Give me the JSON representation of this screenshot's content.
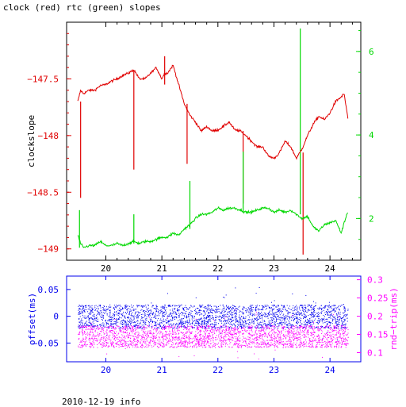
{
  "title": "clock (red) rtc (green) slopes",
  "footer": "2010-12-19 info",
  "colors": {
    "clock": "#e00000",
    "rtc": "#00d800",
    "offset": "#0000ee",
    "rtrip": "#ff00ff",
    "frame": "#000000"
  },
  "chart_data": [
    {
      "type": "line",
      "title": "clock (red) rtc (green) slopes",
      "ylabel": "clockslope",
      "xlim": [
        19.3,
        24.55
      ],
      "ylim": [
        -149.1,
        -147.0
      ],
      "y2lim": [
        1.0,
        6.7
      ],
      "x_ticks": [
        20,
        21,
        22,
        23,
        24
      ],
      "y_ticks": [
        -147.5,
        -148,
        -148.5,
        -149
      ],
      "y_tick_labels": [
        "−147.5",
        "−148",
        "−148.5",
        "−149"
      ],
      "y2_ticks": [
        2,
        4,
        6
      ],
      "y2_tick_labels": [
        "2",
        "4",
        "6"
      ],
      "series": [
        {
          "name": "clock",
          "axis": "left",
          "x": [
            19.5,
            19.55,
            19.6,
            19.7,
            19.8,
            19.9,
            20.0,
            20.1,
            20.2,
            20.3,
            20.4,
            20.5,
            20.6,
            20.7,
            20.8,
            20.9,
            21.0,
            21.05,
            21.1,
            21.2,
            21.3,
            21.4,
            21.5,
            21.6,
            21.7,
            21.8,
            21.9,
            22.0,
            22.1,
            22.2,
            22.3,
            22.4,
            22.5,
            22.6,
            22.7,
            22.8,
            22.9,
            23.0,
            23.05,
            23.1,
            23.2,
            23.3,
            23.4,
            23.5,
            23.6,
            23.7,
            23.8,
            23.9,
            24.0,
            24.1,
            24.2,
            24.25,
            24.3,
            24.32
          ],
          "y": [
            -147.7,
            -147.6,
            -147.63,
            -147.6,
            -147.6,
            -147.56,
            -147.55,
            -147.52,
            -147.5,
            -147.47,
            -147.45,
            -147.42,
            -147.5,
            -147.5,
            -147.45,
            -147.4,
            -147.5,
            -147.45,
            -147.45,
            -147.38,
            -147.55,
            -147.72,
            -147.82,
            -147.88,
            -147.96,
            -147.92,
            -147.96,
            -147.95,
            -147.92,
            -147.88,
            -147.95,
            -147.96,
            -148.0,
            -148.05,
            -148.1,
            -148.1,
            -148.18,
            -148.2,
            -148.18,
            -148.15,
            -148.05,
            -148.1,
            -148.2,
            -148.12,
            -148.0,
            -147.9,
            -147.83,
            -147.86,
            -147.8,
            -147.7,
            -147.66,
            -147.63,
            -147.78,
            -147.85
          ]
        },
        {
          "name": "rtc",
          "axis": "right",
          "x": [
            19.5,
            19.55,
            19.6,
            19.7,
            19.8,
            19.9,
            20.0,
            20.1,
            20.2,
            20.3,
            20.4,
            20.5,
            20.6,
            20.7,
            20.8,
            20.9,
            21.0,
            21.1,
            21.2,
            21.3,
            21.4,
            21.5,
            21.6,
            21.7,
            21.8,
            21.9,
            22.0,
            22.1,
            22.2,
            22.3,
            22.4,
            22.5,
            22.6,
            22.7,
            22.8,
            22.9,
            23.0,
            23.1,
            23.2,
            23.3,
            23.4,
            23.5,
            23.6,
            23.7,
            23.8,
            23.9,
            24.0,
            24.1,
            24.2,
            24.3,
            24.32
          ],
          "y": [
            1.6,
            1.4,
            1.3,
            1.35,
            1.35,
            1.45,
            1.35,
            1.35,
            1.4,
            1.35,
            1.4,
            1.45,
            1.4,
            1.45,
            1.45,
            1.5,
            1.55,
            1.55,
            1.65,
            1.6,
            1.75,
            1.85,
            2.0,
            2.1,
            2.1,
            2.15,
            2.25,
            2.2,
            2.25,
            2.25,
            2.2,
            2.15,
            2.15,
            2.2,
            2.25,
            2.25,
            2.15,
            2.2,
            2.15,
            2.2,
            2.1,
            2.0,
            2.05,
            1.8,
            1.7,
            1.85,
            1.9,
            1.95,
            1.65,
            2.1,
            2.15
          ]
        }
      ],
      "spikes": {
        "clock": [
          [
            19.55,
            -147.7,
            -148.55
          ],
          [
            20.5,
            -147.42,
            -148.3
          ],
          [
            21.45,
            -147.72,
            -148.25
          ],
          [
            22.45,
            -147.96,
            -148.6
          ],
          [
            23.52,
            -148.15,
            -149.05
          ],
          [
            21.05,
            -147.3,
            -147.55
          ]
        ],
        "rtc": [
          [
            19.53,
            1.3,
            2.2
          ],
          [
            20.5,
            1.4,
            2.1
          ],
          [
            21.5,
            1.75,
            2.9
          ],
          [
            22.45,
            2.15,
            3.6
          ],
          [
            23.47,
            2.1,
            6.55
          ]
        ]
      }
    },
    {
      "type": "scatter",
      "ylabel": "offset(ms)",
      "y2label": "rnd−trip(ms)",
      "xlim": [
        19.3,
        24.55
      ],
      "ylim": [
        -0.085,
        0.075
      ],
      "y2lim": [
        0.075,
        0.31
      ],
      "x_ticks": [
        20,
        21,
        22,
        23,
        24
      ],
      "y_ticks": [
        0.05,
        0,
        -0.05
      ],
      "y_tick_labels": [
        "0.05",
        "0",
        "−0.05"
      ],
      "y2_ticks": [
        0.3,
        0.25,
        0.2,
        0.15,
        0.1
      ],
      "y2_tick_labels": [
        "0.3",
        "0.25",
        "0.2",
        "0.15",
        "0.1"
      ],
      "series": [
        {
          "name": "offset",
          "axis": "left",
          "x_range": [
            19.5,
            24.32
          ],
          "center": 0.0,
          "spread": 0.022
        },
        {
          "name": "rnd-trip",
          "axis": "right",
          "x_range": [
            19.5,
            24.32
          ],
          "center": 0.145,
          "spread": 0.03
        }
      ]
    }
  ]
}
